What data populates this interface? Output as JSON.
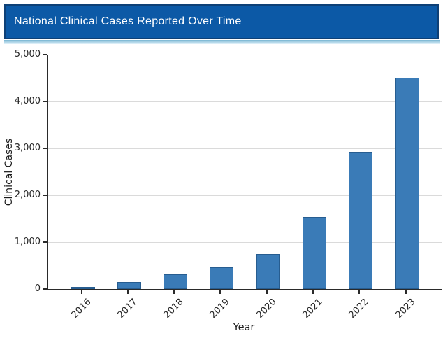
{
  "header": {
    "title": "National Clinical Cases Reported Over Time",
    "background_color": "#0c59a6",
    "border_color": "#0e4076",
    "accent_strip_color": "#79b6d3"
  },
  "chart_data": {
    "type": "bar",
    "title": "National Clinical Cases Reported Over Time",
    "categories": [
      "2016",
      "2017",
      "2018",
      "2019",
      "2020",
      "2021",
      "2022",
      "2023"
    ],
    "values": [
      50,
      150,
      310,
      460,
      740,
      1540,
      2920,
      4510
    ],
    "xlabel": "Year",
    "ylabel": "Clinical Cases",
    "ylim": [
      0,
      5000
    ],
    "yticks": [
      0,
      1000,
      2000,
      3000,
      4000,
      5000
    ],
    "ytick_labels": [
      "0",
      "1,000",
      "2,000",
      "3,000",
      "4,000",
      "5,000"
    ],
    "xtick_rotation": 45,
    "grid": "horizontal",
    "legend": "none",
    "bar_color": "#3a7bb7",
    "bar_edge_color": "#275d90",
    "gridline_color": "#dadada",
    "axis_color": "#2a2a2a"
  }
}
